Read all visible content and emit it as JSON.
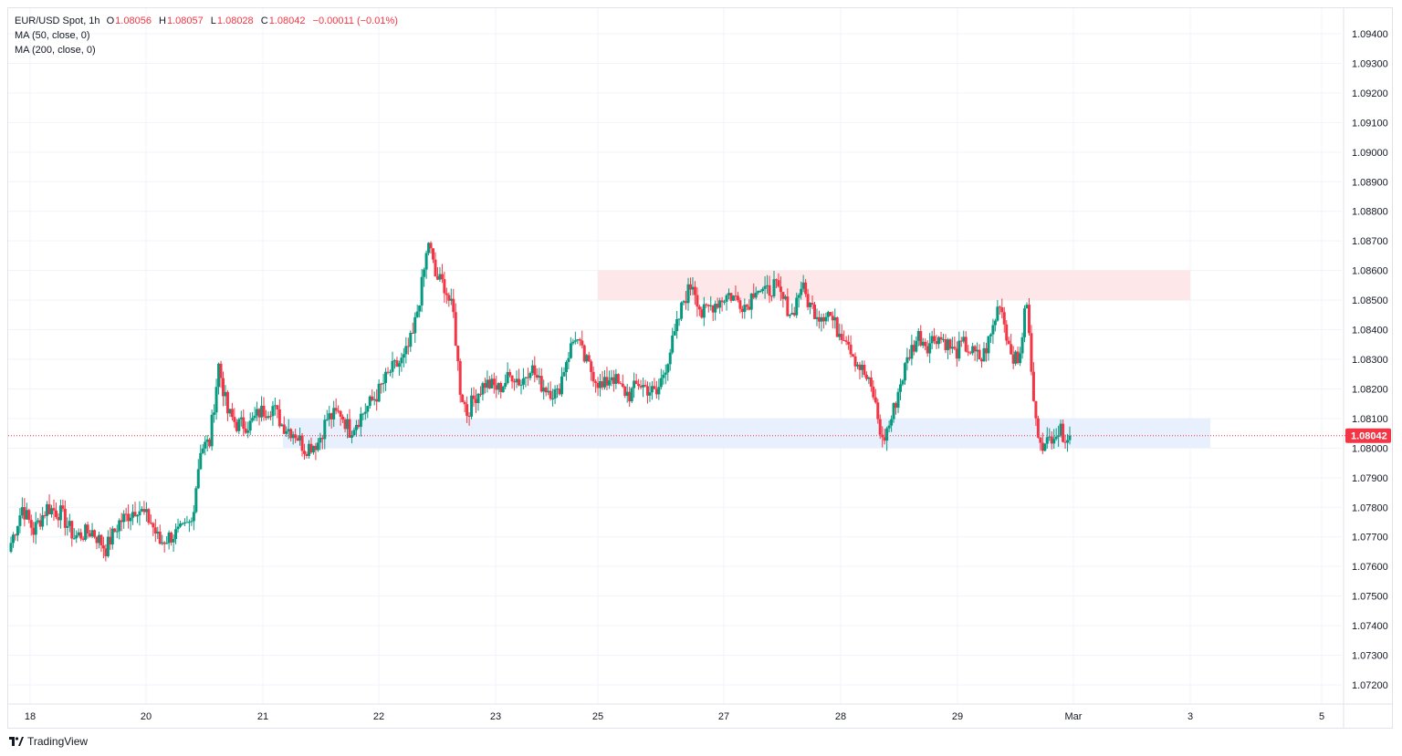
{
  "header": {
    "symbol": "EUR/USD Spot, 1h",
    "o_label": "O",
    "o_value": "1.08056",
    "h_label": "H",
    "h_value": "1.08057",
    "l_label": "L",
    "l_value": "1.08028",
    "c_label": "C",
    "c_value": "1.08042",
    "change": "−0.00011 (−0.01%)",
    "ma1": "MA (50, close, 0)",
    "ma2": "MA (200, close, 0)"
  },
  "branding": {
    "logo_icon": "tradingview-logo-icon",
    "text": "TradingView"
  },
  "chart_data": {
    "type": "candlestick",
    "symbol": "EUR/USD Spot",
    "interval": "1h",
    "y_ticks": [
      "1.07200",
      "1.07300",
      "1.07400",
      "1.07500",
      "1.07600",
      "1.07700",
      "1.07800",
      "1.07900",
      "1.08000",
      "1.08100",
      "1.08200",
      "1.08300",
      "1.08400",
      "1.08500",
      "1.08600",
      "1.08700",
      "1.08800",
      "1.08900",
      "1.09000",
      "1.09100",
      "1.09200",
      "1.09300",
      "1.09400"
    ],
    "ylim": [
      1.0714,
      1.0957
    ],
    "x_ticks": [
      "18",
      "20",
      "21",
      "22",
      "23",
      "25",
      "27",
      "28",
      "29",
      "Mar",
      "3",
      "5"
    ],
    "last_price": "1.08042",
    "last_price_value": 1.08042,
    "colors": {
      "up": "#089981",
      "down": "#f23645",
      "grid": "#f0f3fa",
      "resistance_zone": "#fde7e9",
      "support_zone": "#e8effd"
    },
    "zones": [
      {
        "kind": "resistance",
        "from": "25",
        "to": "3",
        "low": 1.085,
        "high": 1.086
      },
      {
        "kind": "support",
        "from": "21",
        "to": "3",
        "low": 1.08,
        "high": 1.081
      }
    ],
    "anchors": [
      [
        0,
        1.0768
      ],
      [
        5,
        1.078
      ],
      [
        10,
        1.0772
      ],
      [
        16,
        1.078
      ],
      [
        22,
        1.0778
      ],
      [
        28,
        1.077
      ],
      [
        36,
        1.0772
      ],
      [
        42,
        1.0766
      ],
      [
        48,
        1.0775
      ],
      [
        56,
        1.078
      ],
      [
        62,
        1.0775
      ],
      [
        66,
        1.0768
      ],
      [
        70,
        1.077
      ],
      [
        76,
        1.0772
      ],
      [
        80,
        1.0775
      ],
      [
        84,
        1.08
      ],
      [
        88,
        1.0802
      ],
      [
        92,
        1.0828
      ],
      [
        96,
        1.0812
      ],
      [
        100,
        1.0808
      ],
      [
        106,
        1.0808
      ],
      [
        110,
        1.0812
      ],
      [
        116,
        1.0814
      ],
      [
        120,
        1.0808
      ],
      [
        126,
        1.0805
      ],
      [
        130,
        1.08
      ],
      [
        136,
        1.0802
      ],
      [
        140,
        1.081
      ],
      [
        146,
        1.0812
      ],
      [
        150,
        1.0806
      ],
      [
        156,
        1.0812
      ],
      [
        162,
        1.0818
      ],
      [
        168,
        1.0826
      ],
      [
        174,
        1.083
      ],
      [
        178,
        1.0838
      ],
      [
        182,
        1.0855
      ],
      [
        185,
        1.087
      ],
      [
        188,
        1.0858
      ],
      [
        192,
        1.0855
      ],
      [
        196,
        1.0845
      ],
      [
        199,
        1.082
      ],
      [
        202,
        1.0812
      ],
      [
        206,
        1.0818
      ],
      [
        210,
        1.0822
      ],
      [
        216,
        1.082
      ],
      [
        222,
        1.0825
      ],
      [
        226,
        1.0822
      ],
      [
        230,
        1.0828
      ],
      [
        234,
        1.0822
      ],
      [
        238,
        1.082
      ],
      [
        242,
        1.0818
      ],
      [
        246,
        1.083
      ],
      [
        250,
        1.0838
      ],
      [
        254,
        1.083
      ],
      [
        258,
        1.0825
      ],
      [
        262,
        1.082
      ],
      [
        266,
        1.0825
      ],
      [
        270,
        1.082
      ],
      [
        274,
        1.0818
      ],
      [
        278,
        1.0822
      ],
      [
        282,
        1.082
      ],
      [
        286,
        1.0818
      ],
      [
        290,
        1.0828
      ],
      [
        294,
        1.0838
      ],
      [
        298,
        1.085
      ],
      [
        302,
        1.0856
      ],
      [
        306,
        1.0845
      ],
      [
        310,
        1.0848
      ],
      [
        314,
        1.085
      ],
      [
        318,
        1.0852
      ],
      [
        322,
        1.085
      ],
      [
        326,
        1.0848
      ],
      [
        330,
        1.0855
      ],
      [
        334,
        1.0852
      ],
      [
        338,
        1.0855
      ],
      [
        342,
        1.085
      ],
      [
        346,
        1.0845
      ],
      [
        350,
        1.0855
      ],
      [
        354,
        1.0848
      ],
      [
        358,
        1.0845
      ],
      [
        362,
        1.0846
      ],
      [
        366,
        1.084
      ],
      [
        370,
        1.0838
      ],
      [
        374,
        1.083
      ],
      [
        378,
        1.0825
      ],
      [
        382,
        1.0818
      ],
      [
        386,
        1.0802
      ],
      [
        390,
        1.081
      ],
      [
        394,
        1.0822
      ],
      [
        398,
        1.0832
      ],
      [
        402,
        1.0838
      ],
      [
        406,
        1.0835
      ],
      [
        410,
        1.0838
      ],
      [
        414,
        1.0836
      ],
      [
        418,
        1.0832
      ],
      [
        422,
        1.0835
      ],
      [
        426,
        1.0832
      ],
      [
        430,
        1.083
      ],
      [
        434,
        1.0838
      ],
      [
        438,
        1.085
      ],
      [
        442,
        1.0835
      ],
      [
        446,
        1.0828
      ],
      [
        450,
        1.085
      ],
      [
        452,
        1.0825
      ],
      [
        454,
        1.0808
      ],
      [
        458,
        1.08
      ],
      [
        462,
        1.0806
      ],
      [
        466,
        1.0805
      ],
      [
        469,
        1.0804
      ]
    ]
  }
}
